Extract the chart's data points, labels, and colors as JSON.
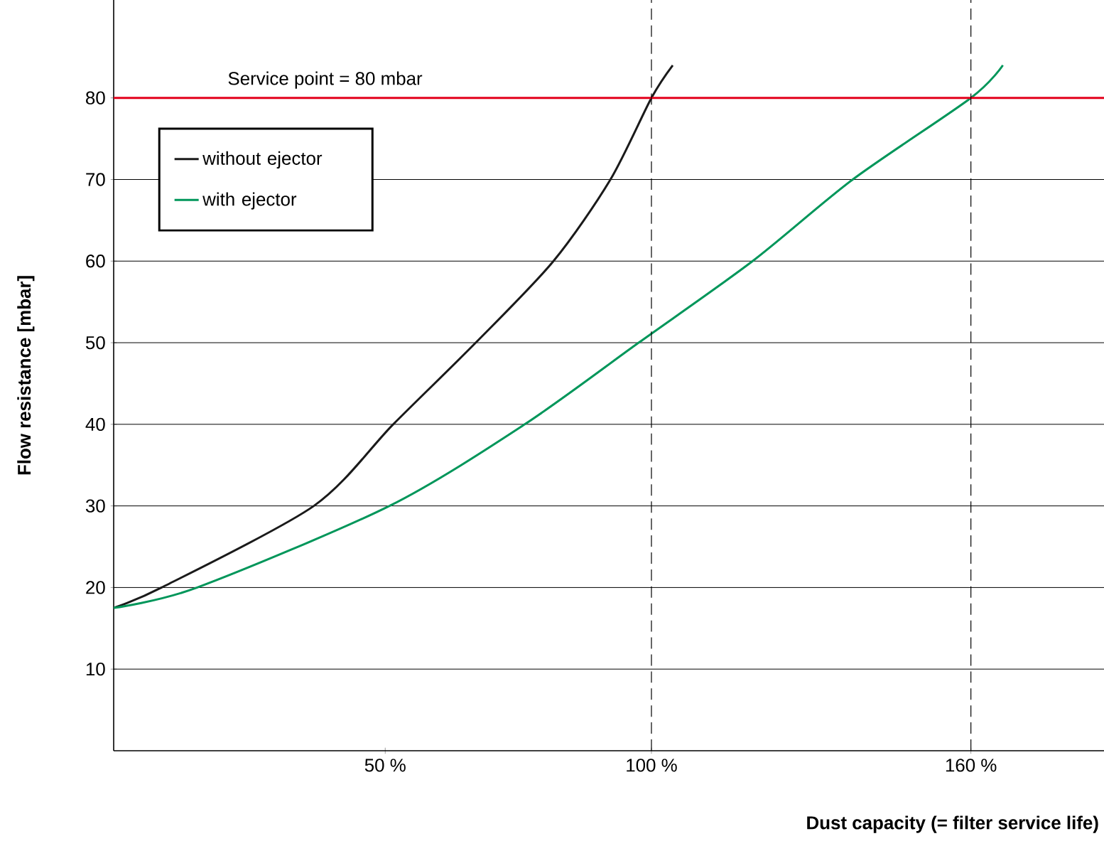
{
  "chart_data": {
    "type": "line",
    "xlabel": "Dust capacity (= filter service life)",
    "ylabel": "Flow resistance [mbar]",
    "series": [
      {
        "name": "without ejector",
        "color": "#1a1a1a",
        "x": [
          -1,
          8,
          36.6,
          51.5,
          67,
          81.6,
          92.3,
          100,
          104
        ],
        "values": [
          17.5,
          20,
          30,
          40,
          50,
          60,
          70,
          80,
          84
        ]
      },
      {
        "name": "with ejector",
        "color": "#00965a",
        "x": [
          -1,
          14.7,
          50.8,
          76.2,
          97.6,
          119,
          137.8,
          160,
          166
        ],
        "values": [
          17.5,
          20,
          30,
          40,
          50,
          60,
          70,
          80,
          84
        ]
      }
    ],
    "xlim": [
      -1,
      185
    ],
    "ylim": [
      0,
      92
    ],
    "xticks": [
      {
        "value": 50,
        "label": "50 %"
      },
      {
        "value": 100,
        "label": "100 %"
      },
      {
        "value": 160,
        "label": "160 %"
      }
    ],
    "yticks": [
      10,
      20,
      30,
      40,
      50,
      60,
      70,
      80
    ],
    "grid": "y",
    "legend": "top left",
    "ref_lines": [
      {
        "axis": "y",
        "value": 80,
        "label": "Service point = 80 mbar",
        "color": "#e3001b"
      },
      {
        "axis": "x",
        "value": 100,
        "color": "#000000",
        "line_style": "dashed"
      },
      {
        "axis": "x",
        "value": 160,
        "color": "#000000",
        "line_style": "dashed"
      }
    ]
  }
}
